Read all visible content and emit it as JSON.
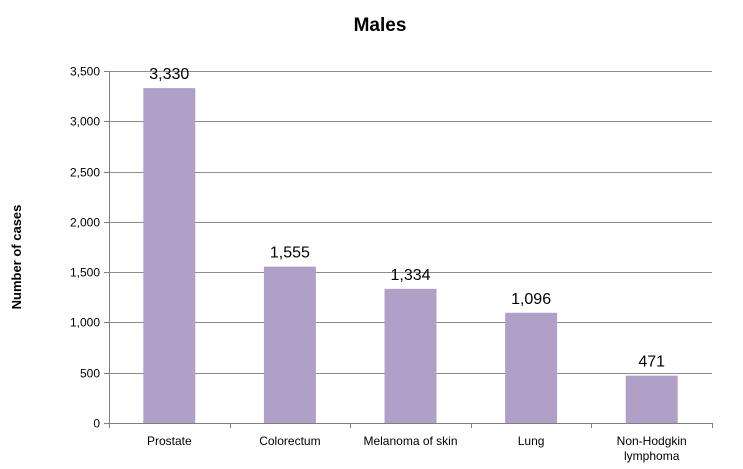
{
  "chart_data": {
    "type": "bar",
    "title": "Males",
    "xlabel": "",
    "ylabel": "Number of cases",
    "categories": [
      "Prostate",
      "Colorectum",
      "Melanoma of skin",
      "Lung",
      "Non-Hodgkin lymphoma"
    ],
    "category_lines": [
      [
        "Prostate"
      ],
      [
        "Colorectum"
      ],
      [
        "Melanoma of skin"
      ],
      [
        "Lung"
      ],
      [
        "Non-Hodgkin",
        "lymphoma"
      ]
    ],
    "values": [
      3330,
      1555,
      1334,
      1096,
      471
    ],
    "data_labels": [
      "3,330",
      "1,555",
      "1,334",
      "1,096",
      "471"
    ],
    "ylim": [
      0,
      3500
    ],
    "yticks": [
      0,
      500,
      1000,
      1500,
      2000,
      2500,
      3000,
      3500
    ],
    "ytick_labels": [
      "0",
      "500",
      "1,000",
      "1,500",
      "2,000",
      "2,500",
      "3,000",
      "3,500"
    ],
    "grid": true,
    "legend": "none",
    "bar_color": "#b0a0c8"
  }
}
